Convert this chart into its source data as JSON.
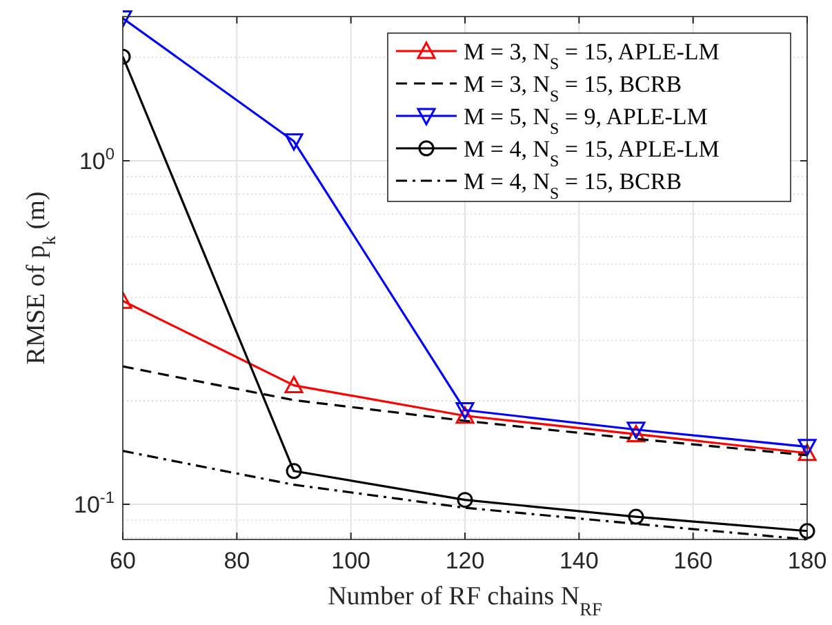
{
  "chart_data": {
    "type": "line",
    "xlabel": "Number of RF chains N$_{RF}$",
    "ylabel": "RMSE of p$_{k}$ (m)",
    "x": [
      60,
      90,
      120,
      150,
      180
    ],
    "xlim": [
      60,
      180
    ],
    "xticks": [
      60,
      80,
      100,
      120,
      140,
      160,
      180
    ],
    "ylim": [
      0.079,
      2.63
    ],
    "yticks": [
      {
        "value": 0.1,
        "label": "10$^{-1}$"
      },
      {
        "value": 1,
        "label": "10$^{0}$"
      }
    ],
    "log": "y",
    "grid": true,
    "legend": "top right",
    "series": [
      {
        "name": "M = 3, N$_{S}$ = 15, APLE-LM",
        "color": "#ff0000",
        "marker": "triangle",
        "line_style": "solid",
        "values": [
          0.391,
          0.222,
          0.181,
          0.16,
          0.141
        ]
      },
      {
        "name": "M = 3, N$_{S}$ = 15, BCRB",
        "color": "#000000",
        "marker": "none",
        "line_style": "dashed",
        "values": [
          0.252,
          0.201,
          0.175,
          0.155,
          0.139
        ]
      },
      {
        "name": "M = 5, N$_{S}$ = 9, APLE-LM",
        "color": "#0000ff",
        "marker": "triangle-down",
        "line_style": "solid",
        "values": [
          2.6,
          1.14,
          0.188,
          0.165,
          0.147
        ]
      },
      {
        "name": "M = 4, N$_{S}$ = 15, APLE-LM",
        "color": "#000000",
        "marker": "circle",
        "line_style": "solid",
        "values": [
          2.01,
          0.125,
          0.103,
          0.092,
          0.0836
        ]
      },
      {
        "name": "M = 4, N$_{S}$ = 15, BCRB",
        "color": "#000000",
        "marker": "none",
        "line_style": "dashdot",
        "values": [
          0.143,
          0.114,
          0.0977,
          0.0877,
          0.079
        ]
      }
    ]
  }
}
